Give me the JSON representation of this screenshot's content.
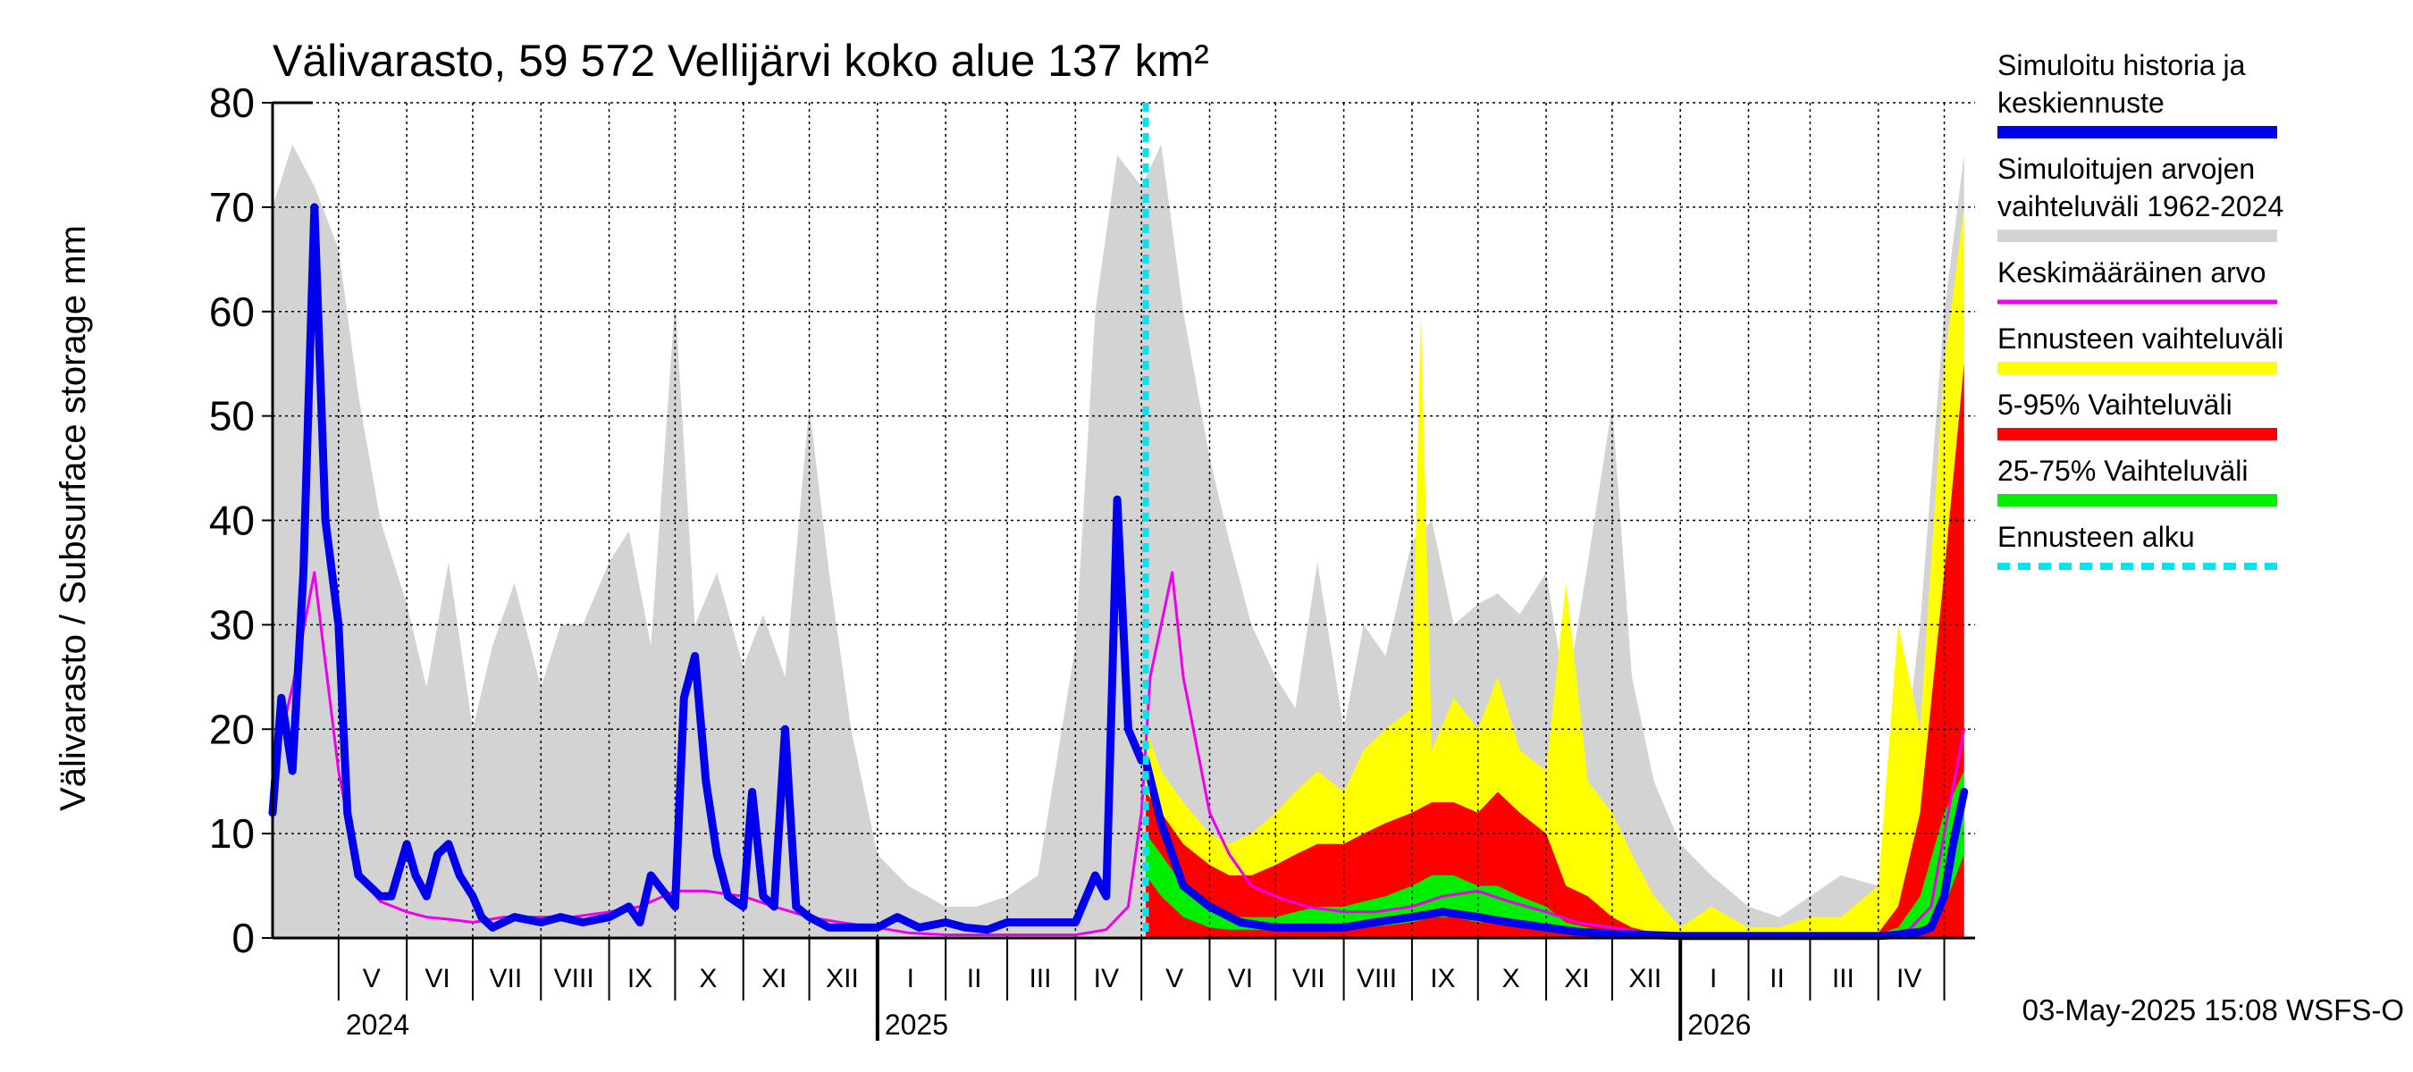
{
  "chart_data": {
    "type": "area",
    "title": "Välivarasto, 59 572 Vellijärvi koko alue 137 km²",
    "ylabel": "Välivarasto / Subsurface storage  mm",
    "footer": "03-May-2025 15:08 WSFS-O",
    "ylim": [
      0,
      80
    ],
    "yticks": [
      0,
      10,
      20,
      30,
      40,
      50,
      60,
      70,
      80
    ],
    "xlim": [
      "2024-04-01",
      "2026-05-15"
    ],
    "forecast_start": "2025-05-03",
    "month_labels": [
      {
        "label": "V",
        "date": "2024-05-16"
      },
      {
        "label": "VI",
        "date": "2024-06-15"
      },
      {
        "label": "VII",
        "date": "2024-07-16"
      },
      {
        "label": "VIII",
        "date": "2024-08-16"
      },
      {
        "label": "IX",
        "date": "2024-09-15"
      },
      {
        "label": "X",
        "date": "2024-10-16"
      },
      {
        "label": "XI",
        "date": "2024-11-15"
      },
      {
        "label": "XII",
        "date": "2024-12-16"
      },
      {
        "label": "I",
        "date": "2025-01-16"
      },
      {
        "label": "II",
        "date": "2025-02-14"
      },
      {
        "label": "III",
        "date": "2025-03-16"
      },
      {
        "label": "IV",
        "date": "2025-04-15"
      },
      {
        "label": "V",
        "date": "2025-05-16"
      },
      {
        "label": "VI",
        "date": "2025-06-15"
      },
      {
        "label": "VII",
        "date": "2025-07-16"
      },
      {
        "label": "VIII",
        "date": "2025-08-16"
      },
      {
        "label": "IX",
        "date": "2025-09-15"
      },
      {
        "label": "X",
        "date": "2025-10-16"
      },
      {
        "label": "XI",
        "date": "2025-11-15"
      },
      {
        "label": "XII",
        "date": "2025-12-16"
      },
      {
        "label": "I",
        "date": "2026-01-16"
      },
      {
        "label": "II",
        "date": "2026-02-14"
      },
      {
        "label": "III",
        "date": "2026-03-16"
      },
      {
        "label": "IV",
        "date": "2026-04-15"
      }
    ],
    "year_labels": [
      {
        "label": "2024",
        "date": "2024-05-01"
      },
      {
        "label": "2025",
        "date": "2025-01-01"
      },
      {
        "label": "2026",
        "date": "2026-01-01"
      }
    ],
    "legend": [
      {
        "label": "Simuloitu historia ja\nkeskiennuste",
        "color": "#0000ee",
        "style": "thick"
      },
      {
        "label": "Simuloitujen arvojen\nvaihteluväli 1962-2024",
        "color": "#d3d3d3",
        "style": "thick"
      },
      {
        "label": "Keskimääräinen arvo",
        "color": "#ee00ee",
        "style": "thin"
      },
      {
        "label": "Ennusteen vaihteluväli",
        "color": "#ffff00",
        "style": "thick"
      },
      {
        "label": "5-95% Vaihteluväli",
        "color": "#ff0000",
        "style": "thick"
      },
      {
        "label": "25-75% Vaihteluväli",
        "color": "#00ee00",
        "style": "thick"
      },
      {
        "label": "Ennusteen alku",
        "color": "#00e5ee",
        "style": "dashed"
      }
    ],
    "series": [
      {
        "name": "Simuloitujen arvojen vaihteluväli 1962-2024",
        "kind": "band",
        "color": "#d3d3d3",
        "x": [
          "2024-04-01",
          "2024-04-10",
          "2024-04-20",
          "2024-05-01",
          "2024-05-10",
          "2024-05-20",
          "2024-06-01",
          "2024-06-10",
          "2024-06-20",
          "2024-07-01",
          "2024-07-10",
          "2024-07-20",
          "2024-08-01",
          "2024-08-10",
          "2024-08-20",
          "2024-09-01",
          "2024-09-10",
          "2024-09-20",
          "2024-10-01",
          "2024-10-10",
          "2024-10-20",
          "2024-11-01",
          "2024-11-10",
          "2024-11-20",
          "2024-12-01",
          "2024-12-10",
          "2024-12-20",
          "2025-01-01",
          "2025-01-15",
          "2025-02-01",
          "2025-02-15",
          "2025-03-01",
          "2025-03-15",
          "2025-04-01",
          "2025-04-10",
          "2025-04-20",
          "2025-05-01",
          "2025-05-10",
          "2025-05-20",
          "2025-06-01",
          "2025-06-10",
          "2025-06-20",
          "2025-07-01",
          "2025-07-10",
          "2025-07-20",
          "2025-08-01",
          "2025-08-10",
          "2025-08-20",
          "2025-09-01",
          "2025-09-10",
          "2025-09-20",
          "2025-10-01",
          "2025-10-10",
          "2025-10-20",
          "2025-11-01",
          "2025-11-10",
          "2025-11-20",
          "2025-12-01",
          "2025-12-10",
          "2025-12-20",
          "2026-01-01",
          "2026-01-15",
          "2026-02-01",
          "2026-02-15",
          "2026-03-01",
          "2026-03-15",
          "2026-04-01",
          "2026-04-10",
          "2026-04-20",
          "2026-05-01",
          "2026-05-10"
        ],
        "upper": [
          70,
          76,
          72,
          66,
          52,
          40,
          32,
          24,
          36,
          20,
          28,
          34,
          24,
          30,
          30,
          36,
          39,
          28,
          61,
          30,
          35,
          26,
          31,
          25,
          51,
          35,
          20,
          8,
          5,
          3,
          3,
          4,
          6,
          28,
          60,
          75,
          72,
          76,
          60,
          46,
          38,
          30,
          25,
          22,
          36,
          20,
          30,
          27,
          38,
          40,
          30,
          32,
          33,
          31,
          35,
          23,
          36,
          51,
          25,
          15,
          9,
          6,
          3,
          2,
          4,
          6,
          5,
          12,
          30,
          60,
          75
        ],
        "lower": [
          0,
          0,
          0,
          0,
          0,
          0,
          0,
          0,
          0,
          0,
          0,
          0,
          0,
          0,
          0,
          0,
          0,
          0,
          0,
          0,
          0,
          0,
          0,
          0,
          0,
          0,
          0,
          0,
          0,
          0,
          0,
          0,
          0,
          0,
          0,
          0,
          0,
          0,
          0,
          0,
          0,
          0,
          0,
          0,
          0,
          0,
          0,
          0,
          0,
          0,
          0,
          0,
          0,
          0,
          0,
          0,
          0,
          0,
          0,
          0,
          0,
          0,
          0,
          0,
          0,
          0,
          0,
          0,
          0,
          0,
          0
        ]
      },
      {
        "name": "Ennusteen vaihteluväli",
        "kind": "band",
        "color": "#ffff00",
        "x": [
          "2025-05-03",
          "2025-05-10",
          "2025-05-20",
          "2025-06-01",
          "2025-06-10",
          "2025-06-20",
          "2025-07-01",
          "2025-07-10",
          "2025-07-20",
          "2025-08-01",
          "2025-08-10",
          "2025-08-20",
          "2025-09-01",
          "2025-09-05",
          "2025-09-10",
          "2025-09-20",
          "2025-10-01",
          "2025-10-10",
          "2025-10-20",
          "2025-11-01",
          "2025-11-10",
          "2025-11-20",
          "2025-12-01",
          "2025-12-10",
          "2025-12-20",
          "2026-01-01",
          "2026-01-15",
          "2026-02-01",
          "2026-02-15",
          "2026-03-01",
          "2026-03-15",
          "2026-04-01",
          "2026-04-10",
          "2026-04-20",
          "2026-05-01",
          "2026-05-10"
        ],
        "upper": [
          20,
          16,
          13,
          10,
          9,
          10,
          12,
          14,
          16,
          14,
          18,
          20,
          22,
          60,
          18,
          23,
          20,
          25,
          18,
          16,
          34,
          15,
          12,
          8,
          4,
          1,
          3,
          1,
          1,
          2,
          2,
          5,
          30,
          20,
          55,
          70
        ],
        "lower": [
          0,
          0,
          0,
          0,
          0,
          0,
          0,
          0,
          0,
          0,
          0,
          0,
          0,
          0,
          0,
          0,
          0,
          0,
          0,
          0,
          0,
          0,
          0,
          0,
          0,
          0,
          0,
          0,
          0,
          0,
          0,
          0,
          0,
          0,
          0,
          0
        ]
      },
      {
        "name": "5-95% Vaihteluväli",
        "kind": "band",
        "color": "#ff0000",
        "x": [
          "2025-05-03",
          "2025-05-10",
          "2025-05-20",
          "2025-06-01",
          "2025-06-10",
          "2025-06-20",
          "2025-07-01",
          "2025-07-10",
          "2025-07-20",
          "2025-08-01",
          "2025-08-10",
          "2025-08-20",
          "2025-09-01",
          "2025-09-10",
          "2025-09-20",
          "2025-10-01",
          "2025-10-10",
          "2025-10-20",
          "2025-11-01",
          "2025-11-10",
          "2025-11-20",
          "2025-12-01",
          "2025-12-10",
          "2025-12-20",
          "2026-01-01",
          "2026-01-15",
          "2026-02-01",
          "2026-02-15",
          "2026-03-01",
          "2026-03-15",
          "2026-04-01",
          "2026-04-10",
          "2026-04-20",
          "2026-05-01",
          "2026-05-10"
        ],
        "upper": [
          14,
          12,
          9,
          7,
          6,
          6,
          7,
          8,
          9,
          9,
          10,
          11,
          12,
          13,
          13,
          12,
          14,
          12,
          10,
          5,
          4,
          2,
          1,
          0.5,
          0.3,
          0.3,
          0.3,
          0.3,
          0.3,
          0.3,
          0.5,
          3,
          12,
          35,
          55
        ],
        "lower": [
          0,
          0,
          0,
          0,
          0,
          0,
          0,
          0,
          0,
          0,
          0,
          0,
          0,
          0,
          0,
          0,
          0,
          0,
          0,
          0,
          0,
          0,
          0,
          0,
          0,
          0,
          0,
          0,
          0,
          0,
          0,
          0,
          0,
          0,
          0
        ]
      },
      {
        "name": "25-75% Vaihteluväli",
        "kind": "band",
        "color": "#00ee00",
        "x": [
          "2025-05-03",
          "2025-05-10",
          "2025-05-20",
          "2025-06-01",
          "2025-06-10",
          "2025-06-20",
          "2025-07-01",
          "2025-07-10",
          "2025-07-20",
          "2025-08-01",
          "2025-08-10",
          "2025-08-20",
          "2025-09-01",
          "2025-09-10",
          "2025-09-20",
          "2025-10-01",
          "2025-10-10",
          "2025-10-20",
          "2025-11-01",
          "2025-11-10",
          "2025-11-20",
          "2025-12-01",
          "2025-12-10",
          "2025-12-20",
          "2026-01-01",
          "2026-01-15",
          "2026-02-01",
          "2026-02-15",
          "2026-03-01",
          "2026-03-15",
          "2026-04-01",
          "2026-04-10",
          "2026-04-20",
          "2026-05-01",
          "2026-05-10"
        ],
        "upper": [
          10,
          8,
          5,
          3,
          2,
          2,
          2,
          2.5,
          3,
          3,
          3.5,
          4,
          5,
          6,
          6,
          5,
          5,
          4,
          3,
          1.5,
          1,
          0.6,
          0.4,
          0.3,
          0.3,
          0.3,
          0.3,
          0.3,
          0.3,
          0.3,
          0.4,
          1,
          4,
          12,
          16
        ],
        "lower": [
          6,
          4,
          2,
          1,
          0.8,
          0.8,
          0.8,
          0.8,
          1,
          1,
          1,
          1.2,
          1.5,
          2,
          2,
          1.5,
          1.5,
          1.2,
          0.8,
          0.5,
          0.3,
          0.2,
          0.2,
          0.2,
          0.2,
          0.2,
          0.2,
          0.2,
          0.2,
          0.2,
          0.2,
          0.3,
          0.6,
          3,
          8
        ]
      },
      {
        "name": "Keskimääräinen arvo",
        "kind": "line",
        "color": "#ee00ee",
        "width": 3,
        "x": [
          "2024-04-01",
          "2024-04-10",
          "2024-04-20",
          "2024-05-01",
          "2024-05-10",
          "2024-05-20",
          "2024-06-01",
          "2024-06-10",
          "2024-06-20",
          "2024-07-01",
          "2024-07-15",
          "2024-08-01",
          "2024-08-15",
          "2024-09-01",
          "2024-09-15",
          "2024-10-01",
          "2024-10-15",
          "2024-11-01",
          "2024-11-15",
          "2024-12-01",
          "2024-12-15",
          "2025-01-01",
          "2025-01-15",
          "2025-02-01",
          "2025-03-01",
          "2025-04-01",
          "2025-04-15",
          "2025-04-25",
          "2025-05-01",
          "2025-05-05",
          "2025-05-10",
          "2025-05-15",
          "2025-05-20",
          "2025-06-01",
          "2025-06-10",
          "2025-06-20",
          "2025-07-01",
          "2025-07-15",
          "2025-08-01",
          "2025-08-15",
          "2025-09-01",
          "2025-09-15",
          "2025-10-01",
          "2025-10-15",
          "2025-11-01",
          "2025-11-15",
          "2025-12-01",
          "2025-12-15",
          "2026-01-01",
          "2026-02-01",
          "2026-03-01",
          "2026-04-01",
          "2026-04-15",
          "2026-04-25",
          "2026-05-01",
          "2026-05-10"
        ],
        "values": [
          16,
          24,
          35,
          16,
          6,
          3.5,
          2.5,
          2,
          1.8,
          1.5,
          2,
          2,
          2,
          2.5,
          3,
          4.5,
          4.5,
          4,
          3,
          2,
          1.5,
          1.0,
          0.5,
          0.3,
          0.3,
          0.3,
          0.8,
          3,
          12,
          25,
          30,
          35,
          25,
          12,
          8,
          5,
          4,
          3,
          2.5,
          2.5,
          3,
          4,
          4.5,
          3.5,
          2.5,
          1.5,
          1,
          0.6,
          0.3,
          0.3,
          0.3,
          0.3,
          0.8,
          3,
          10,
          20
        ]
      },
      {
        "name": "Simuloitu historia ja keskiennuste",
        "kind": "line",
        "color": "#0000ee",
        "width": 9,
        "x": [
          "2024-04-01",
          "2024-04-05",
          "2024-04-10",
          "2024-04-15",
          "2024-04-20",
          "2024-04-25",
          "2024-05-01",
          "2024-05-05",
          "2024-05-10",
          "2024-05-20",
          "2024-05-25",
          "2024-06-01",
          "2024-06-05",
          "2024-06-10",
          "2024-06-15",
          "2024-06-20",
          "2024-06-25",
          "2024-07-01",
          "2024-07-05",
          "2024-07-10",
          "2024-07-20",
          "2024-08-01",
          "2024-08-10",
          "2024-08-20",
          "2024-09-01",
          "2024-09-10",
          "2024-09-15",
          "2024-09-20",
          "2024-10-01",
          "2024-10-05",
          "2024-10-10",
          "2024-10-15",
          "2024-10-20",
          "2024-10-25",
          "2024-11-01",
          "2024-11-05",
          "2024-11-10",
          "2024-11-15",
          "2024-11-20",
          "2024-11-25",
          "2024-12-01",
          "2024-12-10",
          "2024-12-20",
          "2025-01-01",
          "2025-01-10",
          "2025-01-20",
          "2025-02-01",
          "2025-02-10",
          "2025-02-20",
          "2025-03-01",
          "2025-03-10",
          "2025-03-20",
          "2025-04-01",
          "2025-04-10",
          "2025-04-15",
          "2025-04-20",
          "2025-04-25",
          "2025-05-01",
          "2025-05-03",
          "2025-05-10",
          "2025-05-20",
          "2025-06-01",
          "2025-06-15",
          "2025-07-01",
          "2025-07-15",
          "2025-08-01",
          "2025-08-15",
          "2025-09-01",
          "2025-09-15",
          "2025-10-01",
          "2025-10-15",
          "2025-11-01",
          "2025-11-15",
          "2025-12-01",
          "2025-12-15",
          "2026-01-01",
          "2026-02-01",
          "2026-03-01",
          "2026-04-01",
          "2026-04-10",
          "2026-04-20",
          "2026-04-25",
          "2026-05-01",
          "2026-05-05",
          "2026-05-10"
        ],
        "values": [
          12,
          23,
          16,
          35,
          70,
          40,
          30,
          12,
          6,
          4,
          4,
          9,
          6,
          4,
          8,
          9,
          6,
          4,
          2,
          1,
          2,
          1.5,
          2,
          1.5,
          2,
          3,
          1.5,
          6,
          3,
          23,
          27,
          15,
          8,
          4,
          3,
          14,
          4,
          3,
          20,
          3,
          2,
          1,
          1,
          1,
          2,
          1,
          1.5,
          1,
          0.8,
          1.5,
          1.5,
          1.5,
          1.5,
          6,
          4,
          42,
          20,
          17,
          17,
          11,
          5,
          3,
          1.5,
          1,
          1,
          1,
          1.5,
          2,
          2.5,
          2,
          1.5,
          1,
          0.6,
          0.4,
          0.3,
          0.2,
          0.2,
          0.2,
          0.2,
          0.3,
          0.6,
          1,
          4,
          9,
          14
        ]
      }
    ]
  }
}
